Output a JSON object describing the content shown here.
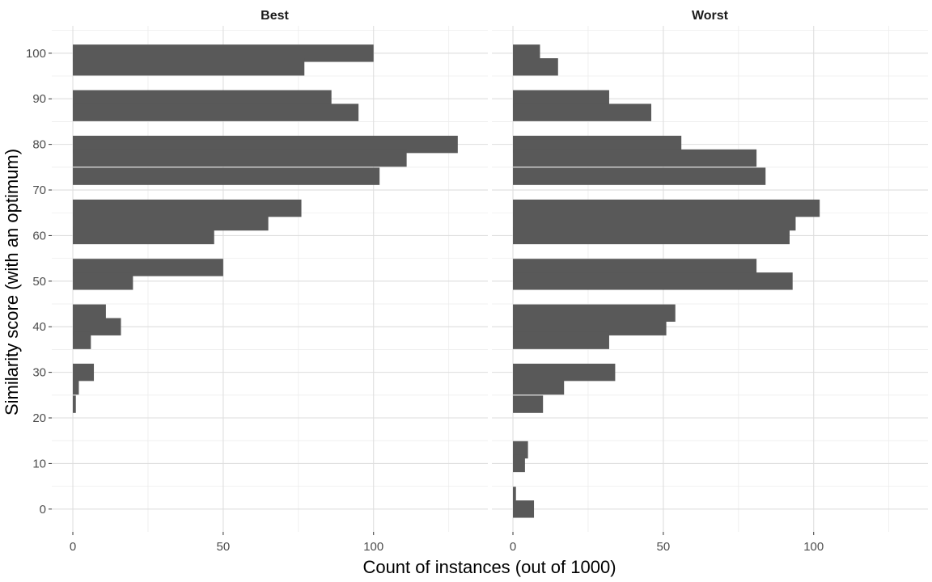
{
  "chart_data": {
    "type": "bar",
    "orientation": "horizontal",
    "xlabel": "Count of instances (out of 1000)",
    "ylabel": "Similarity score (with an optimum)",
    "grid": true,
    "colors": {
      "bar": "#595959",
      "background": "#ffffff"
    },
    "xlim": [
      -7,
      138
    ],
    "ylim": [
      -5,
      106
    ],
    "x_ticks": [
      0,
      50,
      100
    ],
    "y_ticks": [
      0,
      10,
      20,
      30,
      40,
      50,
      60,
      70,
      80,
      90,
      100
    ],
    "panels": [
      {
        "title": "Best",
        "bars": [
          {
            "y": 100,
            "count": 100
          },
          {
            "y": 97,
            "count": 77
          },
          {
            "y": 90,
            "count": 86
          },
          {
            "y": 87,
            "count": 95
          },
          {
            "y": 80,
            "count": 128
          },
          {
            "y": 77,
            "count": 111
          },
          {
            "y": 73,
            "count": 102
          },
          {
            "y": 66,
            "count": 76
          },
          {
            "y": 63,
            "count": 65
          },
          {
            "y": 60,
            "count": 47
          },
          {
            "y": 53,
            "count": 50
          },
          {
            "y": 50,
            "count": 20
          },
          {
            "y": 43,
            "count": 11
          },
          {
            "y": 40,
            "count": 16
          },
          {
            "y": 37,
            "count": 6
          },
          {
            "y": 30,
            "count": 7
          },
          {
            "y": 27,
            "count": 2
          },
          {
            "y": 23,
            "count": 1
          },
          {
            "y": 0,
            "count": 0
          }
        ]
      },
      {
        "title": "Worst",
        "bars": [
          {
            "y": 100,
            "count": 9
          },
          {
            "y": 97,
            "count": 15
          },
          {
            "y": 90,
            "count": 32
          },
          {
            "y": 87,
            "count": 46
          },
          {
            "y": 80,
            "count": 56
          },
          {
            "y": 77,
            "count": 81
          },
          {
            "y": 73,
            "count": 84
          },
          {
            "y": 66,
            "count": 102
          },
          {
            "y": 63,
            "count": 94
          },
          {
            "y": 60,
            "count": 92
          },
          {
            "y": 53,
            "count": 81
          },
          {
            "y": 50,
            "count": 93
          },
          {
            "y": 43,
            "count": 54
          },
          {
            "y": 40,
            "count": 51
          },
          {
            "y": 37,
            "count": 32
          },
          {
            "y": 30,
            "count": 34
          },
          {
            "y": 27,
            "count": 17
          },
          {
            "y": 23,
            "count": 10
          },
          {
            "y": 13,
            "count": 5
          },
          {
            "y": 10,
            "count": 4
          },
          {
            "y": 3,
            "count": 1
          },
          {
            "y": 0,
            "count": 7
          }
        ]
      }
    ]
  }
}
